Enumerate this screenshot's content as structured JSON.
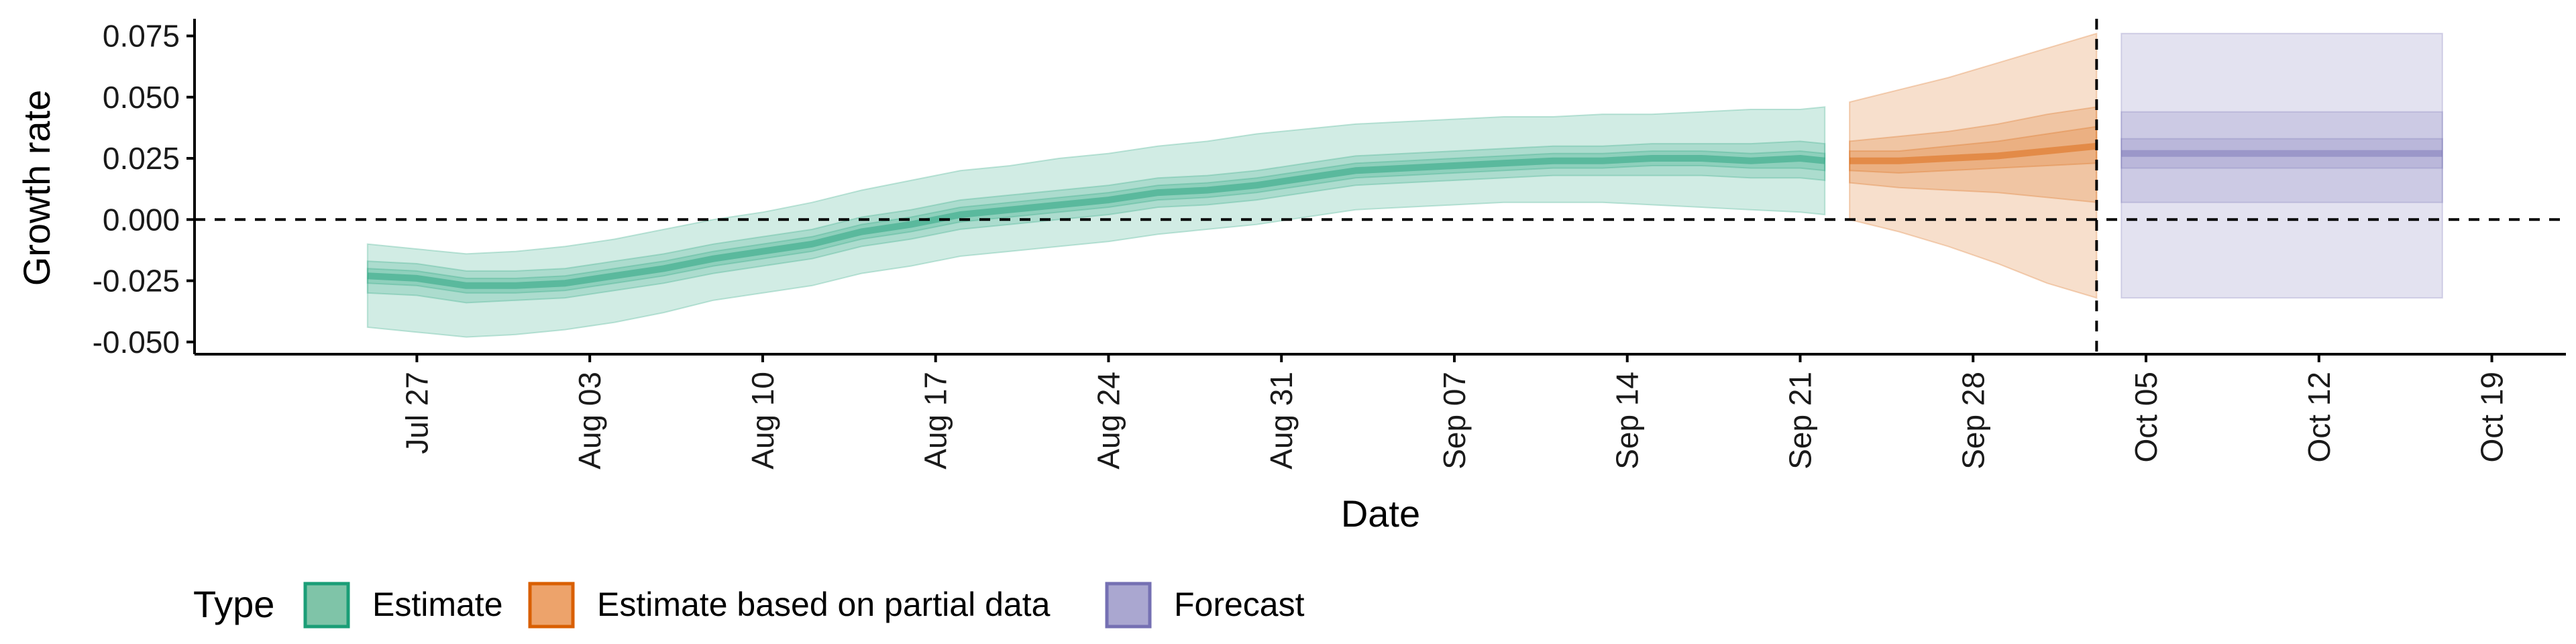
{
  "chart_data": {
    "type": "area",
    "xlabel": "Date",
    "ylabel": "Growth rate",
    "xlim": [
      "2020-07-18",
      "2020-10-22"
    ],
    "ylim": [
      -0.055,
      0.082
    ],
    "x_ticks": [
      "Jul 27",
      "Aug 03",
      "Aug 10",
      "Aug 17",
      "Aug 24",
      "Aug 31",
      "Sep 07",
      "Sep 14",
      "Sep 21",
      "Sep 28",
      "Oct 05",
      "Oct 12",
      "Oct 19"
    ],
    "x_tick_dates": [
      "2020-07-27",
      "2020-08-03",
      "2020-08-10",
      "2020-08-17",
      "2020-08-24",
      "2020-08-31",
      "2020-09-07",
      "2020-09-14",
      "2020-09-21",
      "2020-09-28",
      "2020-10-05",
      "2020-10-12",
      "2020-10-19"
    ],
    "y_ticks": [
      -0.05,
      -0.025,
      0.0,
      0.025,
      0.05,
      0.075
    ],
    "y_tick_labels": [
      "-0.050",
      "-0.025",
      "0.000",
      "0.025",
      "0.050",
      "0.075"
    ],
    "reference_lines": {
      "hline_y": 0.0,
      "vline_date": "2020-10-03"
    },
    "legend": {
      "title": "Type",
      "position": "bottom-left",
      "items": [
        {
          "label": "Estimate",
          "fill": "#7fc4a8",
          "stroke": "#1b9e77"
        },
        {
          "label": "Estimate based on partial data",
          "fill": "#eda36b",
          "stroke": "#d95f02"
        },
        {
          "label": "Forecast",
          "fill": "#aaa7d0",
          "stroke": "#7570b3"
        }
      ]
    },
    "series": [
      {
        "name": "Estimate",
        "color": "#1b9e77",
        "points": [
          {
            "date": "2020-07-25",
            "median": -0.023,
            "lo20": -0.026,
            "hi20": -0.02,
            "lo50": -0.03,
            "hi50": -0.017,
            "lo90": -0.044,
            "hi90": -0.01
          },
          {
            "date": "2020-07-27",
            "median": -0.024,
            "lo20": -0.027,
            "hi20": -0.021,
            "lo50": -0.031,
            "hi50": -0.018,
            "lo90": -0.046,
            "hi90": -0.012
          },
          {
            "date": "2020-07-29",
            "median": -0.027,
            "lo20": -0.03,
            "hi20": -0.024,
            "lo50": -0.034,
            "hi50": -0.021,
            "lo90": -0.048,
            "hi90": -0.014
          },
          {
            "date": "2020-07-31",
            "median": -0.027,
            "lo20": -0.03,
            "hi20": -0.024,
            "lo50": -0.033,
            "hi50": -0.021,
            "lo90": -0.047,
            "hi90": -0.013
          },
          {
            "date": "2020-08-02",
            "median": -0.026,
            "lo20": -0.029,
            "hi20": -0.023,
            "lo50": -0.032,
            "hi50": -0.02,
            "lo90": -0.045,
            "hi90": -0.011
          },
          {
            "date": "2020-08-04",
            "median": -0.023,
            "lo20": -0.026,
            "hi20": -0.02,
            "lo50": -0.029,
            "hi50": -0.017,
            "lo90": -0.042,
            "hi90": -0.008
          },
          {
            "date": "2020-08-06",
            "median": -0.02,
            "lo20": -0.023,
            "hi20": -0.017,
            "lo50": -0.026,
            "hi50": -0.014,
            "lo90": -0.038,
            "hi90": -0.004
          },
          {
            "date": "2020-08-08",
            "median": -0.016,
            "lo20": -0.019,
            "hi20": -0.013,
            "lo50": -0.022,
            "hi50": -0.01,
            "lo90": -0.033,
            "hi90": 0.0
          },
          {
            "date": "2020-08-10",
            "median": -0.013,
            "lo20": -0.016,
            "hi20": -0.01,
            "lo50": -0.019,
            "hi50": -0.007,
            "lo90": -0.03,
            "hi90": 0.003
          },
          {
            "date": "2020-08-12",
            "median": -0.01,
            "lo20": -0.013,
            "hi20": -0.007,
            "lo50": -0.016,
            "hi50": -0.004,
            "lo90": -0.027,
            "hi90": 0.007
          },
          {
            "date": "2020-08-14",
            "median": -0.005,
            "lo20": -0.008,
            "hi20": -0.002,
            "lo50": -0.011,
            "hi50": 0.001,
            "lo90": -0.022,
            "hi90": 0.012
          },
          {
            "date": "2020-08-16",
            "median": -0.002,
            "lo20": -0.005,
            "hi20": 0.001,
            "lo50": -0.008,
            "hi50": 0.004,
            "lo90": -0.019,
            "hi90": 0.016
          },
          {
            "date": "2020-08-18",
            "median": 0.002,
            "lo20": -0.001,
            "hi20": 0.005,
            "lo50": -0.004,
            "hi50": 0.008,
            "lo90": -0.015,
            "hi90": 0.02
          },
          {
            "date": "2020-08-20",
            "median": 0.004,
            "lo20": 0.001,
            "hi20": 0.007,
            "lo50": -0.002,
            "hi50": 0.01,
            "lo90": -0.013,
            "hi90": 0.022
          },
          {
            "date": "2020-08-22",
            "median": 0.006,
            "lo20": 0.003,
            "hi20": 0.009,
            "lo50": 0.0,
            "hi50": 0.012,
            "lo90": -0.011,
            "hi90": 0.025
          },
          {
            "date": "2020-08-24",
            "median": 0.008,
            "lo20": 0.005,
            "hi20": 0.011,
            "lo50": 0.002,
            "hi50": 0.014,
            "lo90": -0.009,
            "hi90": 0.027
          },
          {
            "date": "2020-08-26",
            "median": 0.011,
            "lo20": 0.008,
            "hi20": 0.014,
            "lo50": 0.005,
            "hi50": 0.017,
            "lo90": -0.006,
            "hi90": 0.03
          },
          {
            "date": "2020-08-28",
            "median": 0.012,
            "lo20": 0.009,
            "hi20": 0.015,
            "lo50": 0.006,
            "hi50": 0.018,
            "lo90": -0.004,
            "hi90": 0.032
          },
          {
            "date": "2020-08-30",
            "median": 0.014,
            "lo20": 0.011,
            "hi20": 0.017,
            "lo50": 0.008,
            "hi50": 0.02,
            "lo90": -0.002,
            "hi90": 0.035
          },
          {
            "date": "2020-09-01",
            "median": 0.017,
            "lo20": 0.014,
            "hi20": 0.02,
            "lo50": 0.011,
            "hi50": 0.023,
            "lo90": 0.001,
            "hi90": 0.037
          },
          {
            "date": "2020-09-03",
            "median": 0.02,
            "lo20": 0.017,
            "hi20": 0.023,
            "lo50": 0.014,
            "hi50": 0.026,
            "lo90": 0.004,
            "hi90": 0.039
          },
          {
            "date": "2020-09-05",
            "median": 0.021,
            "lo20": 0.018,
            "hi20": 0.024,
            "lo50": 0.015,
            "hi50": 0.027,
            "lo90": 0.005,
            "hi90": 0.04
          },
          {
            "date": "2020-09-07",
            "median": 0.022,
            "lo20": 0.019,
            "hi20": 0.025,
            "lo50": 0.016,
            "hi50": 0.028,
            "lo90": 0.006,
            "hi90": 0.041
          },
          {
            "date": "2020-09-09",
            "median": 0.023,
            "lo20": 0.02,
            "hi20": 0.026,
            "lo50": 0.017,
            "hi50": 0.029,
            "lo90": 0.007,
            "hi90": 0.042
          },
          {
            "date": "2020-09-11",
            "median": 0.024,
            "lo20": 0.021,
            "hi20": 0.027,
            "lo50": 0.018,
            "hi50": 0.03,
            "lo90": 0.007,
            "hi90": 0.042
          },
          {
            "date": "2020-09-13",
            "median": 0.024,
            "lo20": 0.021,
            "hi20": 0.027,
            "lo50": 0.018,
            "hi50": 0.03,
            "lo90": 0.007,
            "hi90": 0.043
          },
          {
            "date": "2020-09-15",
            "median": 0.025,
            "lo20": 0.022,
            "hi20": 0.028,
            "lo50": 0.018,
            "hi50": 0.031,
            "lo90": 0.006,
            "hi90": 0.043
          },
          {
            "date": "2020-09-17",
            "median": 0.025,
            "lo20": 0.022,
            "hi20": 0.028,
            "lo50": 0.018,
            "hi50": 0.031,
            "lo90": 0.005,
            "hi90": 0.044
          },
          {
            "date": "2020-09-19",
            "median": 0.024,
            "lo20": 0.021,
            "hi20": 0.027,
            "lo50": 0.017,
            "hi50": 0.031,
            "lo90": 0.004,
            "hi90": 0.045
          },
          {
            "date": "2020-09-21",
            "median": 0.025,
            "lo20": 0.021,
            "hi20": 0.028,
            "lo50": 0.017,
            "hi50": 0.032,
            "lo90": 0.003,
            "hi90": 0.045
          },
          {
            "date": "2020-09-22",
            "median": 0.024,
            "lo20": 0.02,
            "hi20": 0.027,
            "lo50": 0.016,
            "hi50": 0.031,
            "lo90": 0.002,
            "hi90": 0.046
          }
        ]
      },
      {
        "name": "Estimate based on partial data",
        "color": "#d95f02",
        "points": [
          {
            "date": "2020-09-23",
            "median": 0.024,
            "lo20": 0.02,
            "hi20": 0.028,
            "lo50": 0.015,
            "hi50": 0.032,
            "lo90": 0.0,
            "hi90": 0.048
          },
          {
            "date": "2020-09-25",
            "median": 0.024,
            "lo20": 0.019,
            "hi20": 0.028,
            "lo50": 0.013,
            "hi50": 0.034,
            "lo90": -0.005,
            "hi90": 0.053
          },
          {
            "date": "2020-09-27",
            "median": 0.025,
            "lo20": 0.02,
            "hi20": 0.03,
            "lo50": 0.012,
            "hi50": 0.036,
            "lo90": -0.011,
            "hi90": 0.058
          },
          {
            "date": "2020-09-29",
            "median": 0.026,
            "lo20": 0.021,
            "hi20": 0.032,
            "lo50": 0.011,
            "hi50": 0.039,
            "lo90": -0.018,
            "hi90": 0.064
          },
          {
            "date": "2020-10-01",
            "median": 0.028,
            "lo20": 0.022,
            "hi20": 0.035,
            "lo50": 0.009,
            "hi50": 0.043,
            "lo90": -0.026,
            "hi90": 0.07
          },
          {
            "date": "2020-10-03",
            "median": 0.03,
            "lo20": 0.023,
            "hi20": 0.038,
            "lo50": 0.007,
            "hi50": 0.046,
            "lo90": -0.032,
            "hi90": 0.076
          }
        ]
      },
      {
        "name": "Forecast",
        "color": "#7570b3",
        "points": [
          {
            "date": "2020-10-04",
            "median": 0.027,
            "lo20": 0.021,
            "hi20": 0.033,
            "lo50": 0.007,
            "hi50": 0.044,
            "lo90": -0.032,
            "hi90": 0.076
          },
          {
            "date": "2020-10-17",
            "median": 0.027,
            "lo20": 0.021,
            "hi20": 0.033,
            "lo50": 0.007,
            "hi50": 0.044,
            "lo90": -0.032,
            "hi90": 0.076
          }
        ]
      }
    ]
  }
}
